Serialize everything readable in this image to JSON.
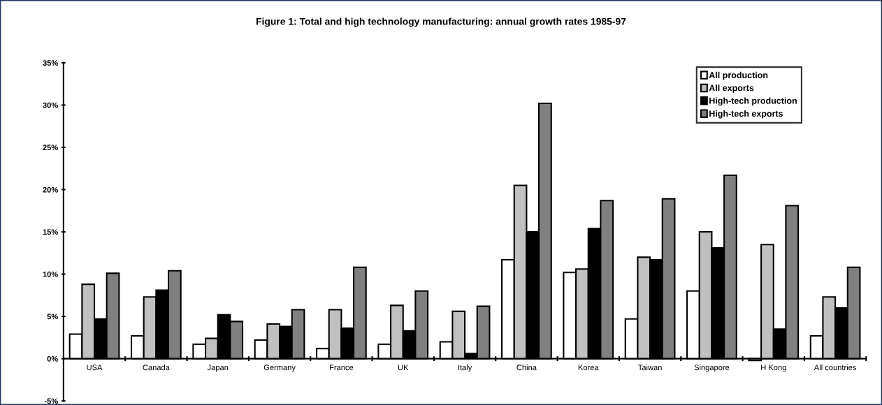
{
  "chart_data": {
    "type": "bar",
    "title": "Figure 1: Total and high technology manufacturing: annual growth rates 1985-97",
    "categories": [
      "USA",
      "Canada",
      "Japan",
      "Germany",
      "France",
      "UK",
      "Italy",
      "China",
      "Korea",
      "Taiwan",
      "Singapore",
      "H Kong",
      "All countries"
    ],
    "series": [
      {
        "name": "All production",
        "color": "#ffffff",
        "values": [
          2.9,
          2.7,
          1.7,
          2.2,
          1.2,
          1.7,
          2.0,
          11.7,
          10.2,
          4.7,
          8.0,
          -0.2,
          2.7
        ]
      },
      {
        "name": "All exports",
        "color": "#c0c0c0",
        "values": [
          8.8,
          7.3,
          2.4,
          4.1,
          5.8,
          6.3,
          5.6,
          20.5,
          10.6,
          12.0,
          15.0,
          13.5,
          7.3
        ]
      },
      {
        "name": "High-tech production",
        "color": "#000000",
        "values": [
          4.7,
          8.1,
          5.2,
          3.8,
          3.6,
          3.3,
          0.6,
          15.0,
          15.4,
          11.7,
          13.1,
          3.5,
          6.0
        ]
      },
      {
        "name": "High-tech exports",
        "color": "#808080",
        "values": [
          10.1,
          10.4,
          4.4,
          5.8,
          10.8,
          8.0,
          6.2,
          30.2,
          18.7,
          18.9,
          21.7,
          18.1,
          10.8
        ]
      }
    ],
    "ylim": [
      -5,
      35
    ],
    "yticks": [
      {
        "value": -5,
        "label": "-5%"
      },
      {
        "value": 0,
        "label": "0%"
      },
      {
        "value": 5,
        "label": "5%"
      },
      {
        "value": 10,
        "label": "10%"
      },
      {
        "value": 15,
        "label": "15%"
      },
      {
        "value": 20,
        "label": "20%"
      },
      {
        "value": 25,
        "label": "25%"
      },
      {
        "value": 30,
        "label": "30%"
      },
      {
        "value": 35,
        "label": "35%"
      }
    ],
    "grid": false,
    "legend": "top right"
  }
}
